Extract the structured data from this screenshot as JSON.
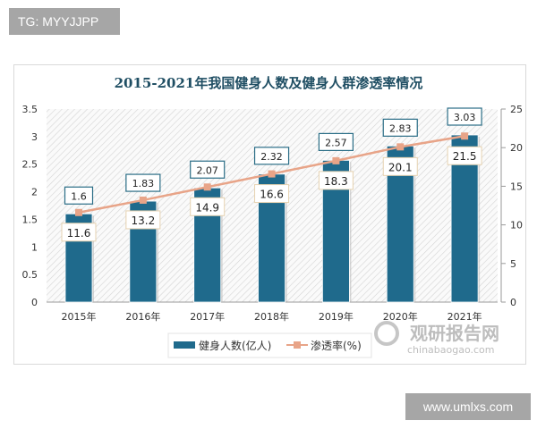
{
  "watermark_top": "TG: MYYJJPP",
  "watermark_bottom": "www.umlxs.com",
  "logo": {
    "name": "观研报告网",
    "domain": "chinabaogao.com"
  },
  "chart_data": {
    "type": "bar+line",
    "title": "2015-2021年我国健身人数及健身人群渗透率情况",
    "categories": [
      "2015年",
      "2016年",
      "2017年",
      "2018年",
      "2019年",
      "2020年",
      "2021年"
    ],
    "series": [
      {
        "name": "健身人数(亿人)",
        "type": "bar",
        "axis": "left",
        "color": "#1f6a8c",
        "values": [
          1.6,
          1.83,
          2.07,
          2.32,
          2.57,
          2.83,
          3.03
        ]
      },
      {
        "name": "渗透率(%)",
        "type": "line",
        "axis": "right",
        "color": "#e8a488",
        "values": [
          11.6,
          13.2,
          14.9,
          16.6,
          18.3,
          20.1,
          21.5
        ]
      }
    ],
    "y_left": {
      "min": 0,
      "max": 3.5,
      "ticks": [
        "0",
        "0.5",
        "1",
        "1.5",
        "2",
        "2.5",
        "3",
        "3.5"
      ]
    },
    "y_right": {
      "min": 0,
      "max": 25,
      "ticks": [
        "0",
        "5",
        "10",
        "15",
        "20",
        "25"
      ]
    },
    "legend": "bottom",
    "grid": false,
    "background": "diagonal-hatch"
  }
}
